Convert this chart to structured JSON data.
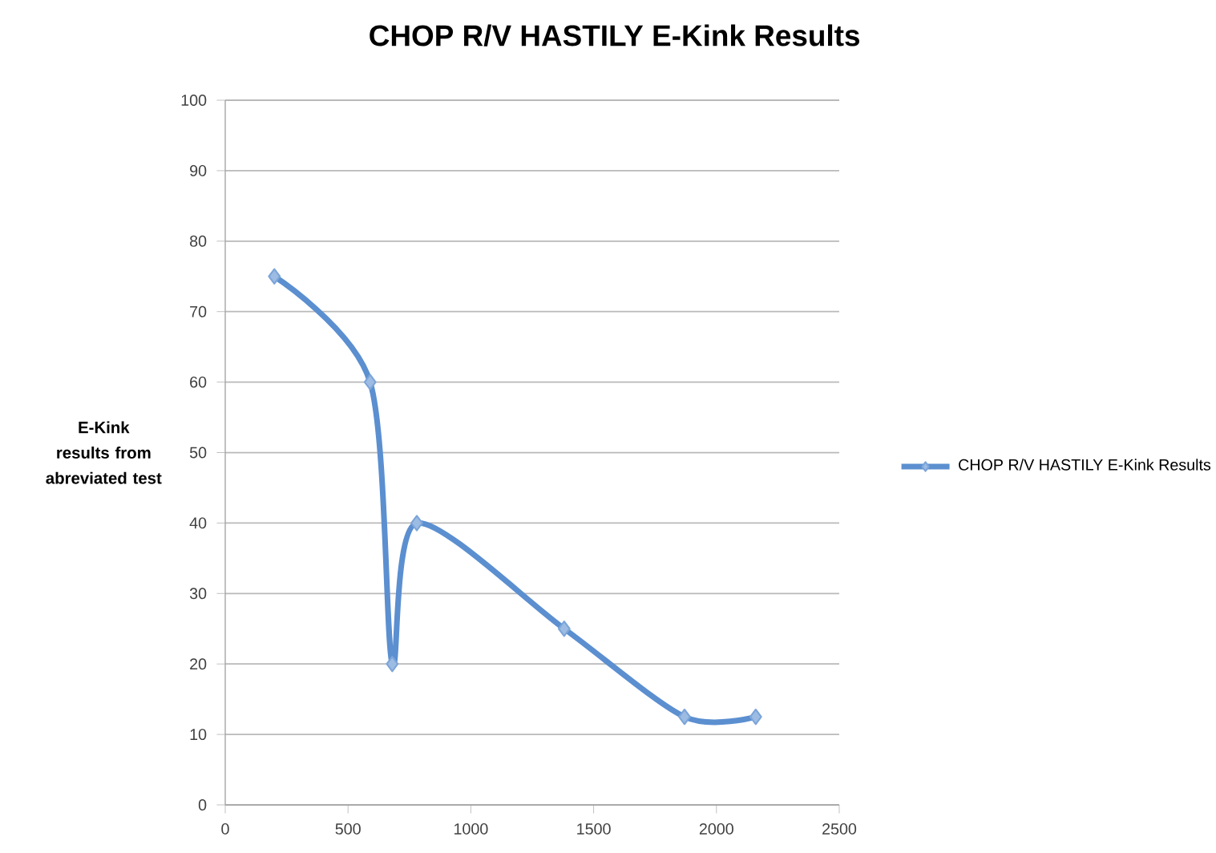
{
  "chart_data": {
    "type": "line",
    "title": "CHOP R/V HASTILY  E-Kink Results",
    "ylabel": "E-Kink results from abreviated test",
    "x": [
      200,
      590,
      680,
      780,
      1380,
      1870,
      2160
    ],
    "series": [
      {
        "name": "CHOP R/V HASTILY  E-Kink Results",
        "color": "#5b8fd0",
        "values": [
          75,
          60,
          20,
          40,
          25,
          12.5,
          12.5
        ]
      }
    ],
    "xlim": [
      0,
      2500
    ],
    "xticks": [
      0,
      500,
      1000,
      1500,
      2000,
      2500
    ],
    "ylim": [
      0,
      100
    ],
    "yticks": [
      0,
      10,
      20,
      30,
      40,
      50,
      60,
      70,
      80,
      90,
      100
    ],
    "grid": "y",
    "legend": "right",
    "marker": "diamond",
    "line_style": "solid"
  }
}
